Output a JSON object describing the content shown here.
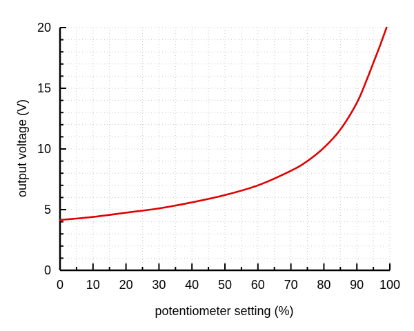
{
  "chart_data": {
    "type": "line",
    "title": "",
    "xlabel": "potentiometer setting (%)",
    "ylabel": "output voltage (V)",
    "xlim": [
      0,
      100
    ],
    "ylim": [
      0,
      20
    ],
    "x_ticks": [
      "0",
      "10",
      "20",
      "30",
      "40",
      "50",
      "60",
      "70",
      "80",
      "90",
      "100"
    ],
    "y_ticks": [
      "0",
      "5",
      "10",
      "15",
      "20"
    ],
    "grid": true,
    "legend": "none",
    "series": [
      {
        "color": "#e00000",
        "x": [
          0,
          10,
          20,
          30,
          40,
          50,
          60,
          70,
          75,
          80,
          85,
          90,
          93,
          95,
          97,
          99
        ],
        "y": [
          4.15,
          4.4,
          4.75,
          5.1,
          5.6,
          6.2,
          7.0,
          8.2,
          9.0,
          10.1,
          11.6,
          13.8,
          15.7,
          17.1,
          18.5,
          20.0
        ]
      }
    ],
    "colors": {
      "line": "#e00000",
      "axis": "#000000",
      "grid": "#c8c8c8"
    }
  }
}
